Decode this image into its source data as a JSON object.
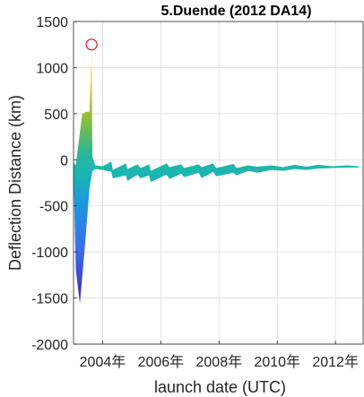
{
  "chart_data": {
    "type": "area",
    "title": "5.Duende (2012 DA14)",
    "xlabel": "launch date (UTC)",
    "ylabel": "Deflection Distance (km)",
    "xlim": [
      2003.0,
      2012.95
    ],
    "ylim": [
      -2000,
      1500
    ],
    "x_ticks": [
      {
        "value": 2004,
        "label": "2004年"
      },
      {
        "value": 2006,
        "label": "2006年"
      },
      {
        "value": 2008,
        "label": "2008年"
      },
      {
        "value": 2010,
        "label": "2010年"
      },
      {
        "value": 2012,
        "label": "2012年"
      }
    ],
    "y_ticks": [
      {
        "value": 1500,
        "label": "1500"
      },
      {
        "value": 1000,
        "label": "1000"
      },
      {
        "value": 500,
        "label": "500"
      },
      {
        "value": 0,
        "label": "0"
      },
      {
        "value": -500,
        "label": "-500"
      },
      {
        "value": -1000,
        "label": "-1000"
      },
      {
        "value": -1500,
        "label": "-1500"
      },
      {
        "value": -2000,
        "label": "-2000"
      }
    ],
    "grid": true,
    "colormap": "parula",
    "series": [
      {
        "band_upper": [
          [
            2003.0,
            -30
          ],
          [
            2003.08,
            -60
          ],
          [
            2003.2,
            250
          ],
          [
            2003.3,
            500
          ],
          [
            2003.45,
            520
          ],
          [
            2003.55,
            520
          ],
          [
            2003.62,
            1150
          ],
          [
            2003.65,
            30
          ],
          [
            2003.75,
            -60
          ],
          [
            2004.0,
            -70
          ],
          [
            2004.3,
            -20
          ],
          [
            2004.35,
            -110
          ],
          [
            2004.8,
            -40
          ],
          [
            2004.85,
            -100
          ],
          [
            2005.2,
            -50
          ],
          [
            2005.3,
            -90
          ],
          [
            2005.6,
            -50
          ],
          [
            2005.65,
            -120
          ],
          [
            2006.2,
            -40
          ],
          [
            2006.3,
            -80
          ],
          [
            2006.7,
            -50
          ],
          [
            2006.8,
            -90
          ],
          [
            2007.3,
            -50
          ],
          [
            2007.4,
            -80
          ],
          [
            2007.8,
            -40
          ],
          [
            2007.9,
            -90
          ],
          [
            2008.5,
            -45
          ],
          [
            2008.6,
            -90
          ],
          [
            2009.0,
            -60
          ],
          [
            2009.3,
            -75
          ],
          [
            2009.8,
            -60
          ],
          [
            2010.2,
            -80
          ],
          [
            2010.6,
            -55
          ],
          [
            2011.0,
            -75
          ],
          [
            2011.4,
            -55
          ],
          [
            2011.9,
            -70
          ],
          [
            2012.4,
            -60
          ],
          [
            2012.8,
            -70
          ]
        ],
        "band_lower": [
          [
            2003.0,
            -150
          ],
          [
            2003.08,
            -1200
          ],
          [
            2003.22,
            -1560
          ],
          [
            2003.4,
            -900
          ],
          [
            2003.55,
            -300
          ],
          [
            2003.65,
            -120
          ],
          [
            2003.75,
            -100
          ],
          [
            2004.0,
            -110
          ],
          [
            2004.3,
            -130
          ],
          [
            2004.35,
            -200
          ],
          [
            2004.8,
            -170
          ],
          [
            2004.85,
            -230
          ],
          [
            2005.2,
            -160
          ],
          [
            2005.3,
            -200
          ],
          [
            2005.6,
            -170
          ],
          [
            2005.65,
            -240
          ],
          [
            2006.2,
            -160
          ],
          [
            2006.3,
            -210
          ],
          [
            2006.7,
            -150
          ],
          [
            2006.8,
            -190
          ],
          [
            2007.3,
            -140
          ],
          [
            2007.4,
            -200
          ],
          [
            2007.8,
            -130
          ],
          [
            2007.9,
            -180
          ],
          [
            2008.5,
            -140
          ],
          [
            2008.6,
            -170
          ],
          [
            2009.0,
            -120
          ],
          [
            2009.3,
            -140
          ],
          [
            2009.8,
            -110
          ],
          [
            2010.2,
            -120
          ],
          [
            2010.6,
            -100
          ],
          [
            2011.0,
            -110
          ],
          [
            2011.4,
            -95
          ],
          [
            2011.9,
            -90
          ],
          [
            2012.4,
            -85
          ],
          [
            2012.8,
            -85
          ]
        ]
      }
    ],
    "marker": {
      "x": 2003.62,
      "y": 1250,
      "shape": "circle",
      "color": "#e41a1c"
    }
  }
}
